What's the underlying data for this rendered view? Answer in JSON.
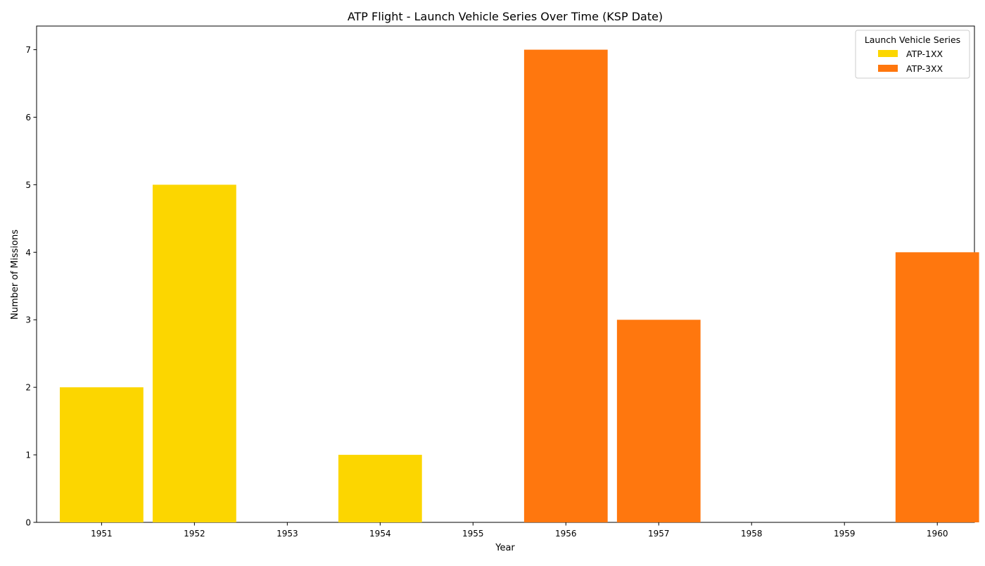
{
  "chart_data": {
    "type": "bar",
    "title": "ATP Flight - Launch Vehicle Series Over Time (KSP Date)",
    "xlabel": "Year",
    "ylabel": "Number of Missions",
    "categories": [
      "1951",
      "1952",
      "1953",
      "1954",
      "1955",
      "1956",
      "1957",
      "1958",
      "1959",
      "1960"
    ],
    "stacked": true,
    "series": [
      {
        "name": "ATP-1XX",
        "color": "#FCD600",
        "values": [
          2,
          5,
          0,
          1,
          0,
          0,
          0,
          0,
          0,
          0
        ]
      },
      {
        "name": "ATP-3XX",
        "color": "#FF770E",
        "values": [
          0,
          0,
          0,
          0,
          0,
          7,
          3,
          0,
          0,
          4
        ]
      }
    ],
    "ylim": [
      0,
      7.35
    ],
    "yticks": [
      0,
      1,
      2,
      3,
      4,
      5,
      6,
      7
    ],
    "grid": false,
    "legend": {
      "title": "Launch Vehicle Series",
      "position": "top-right"
    }
  }
}
